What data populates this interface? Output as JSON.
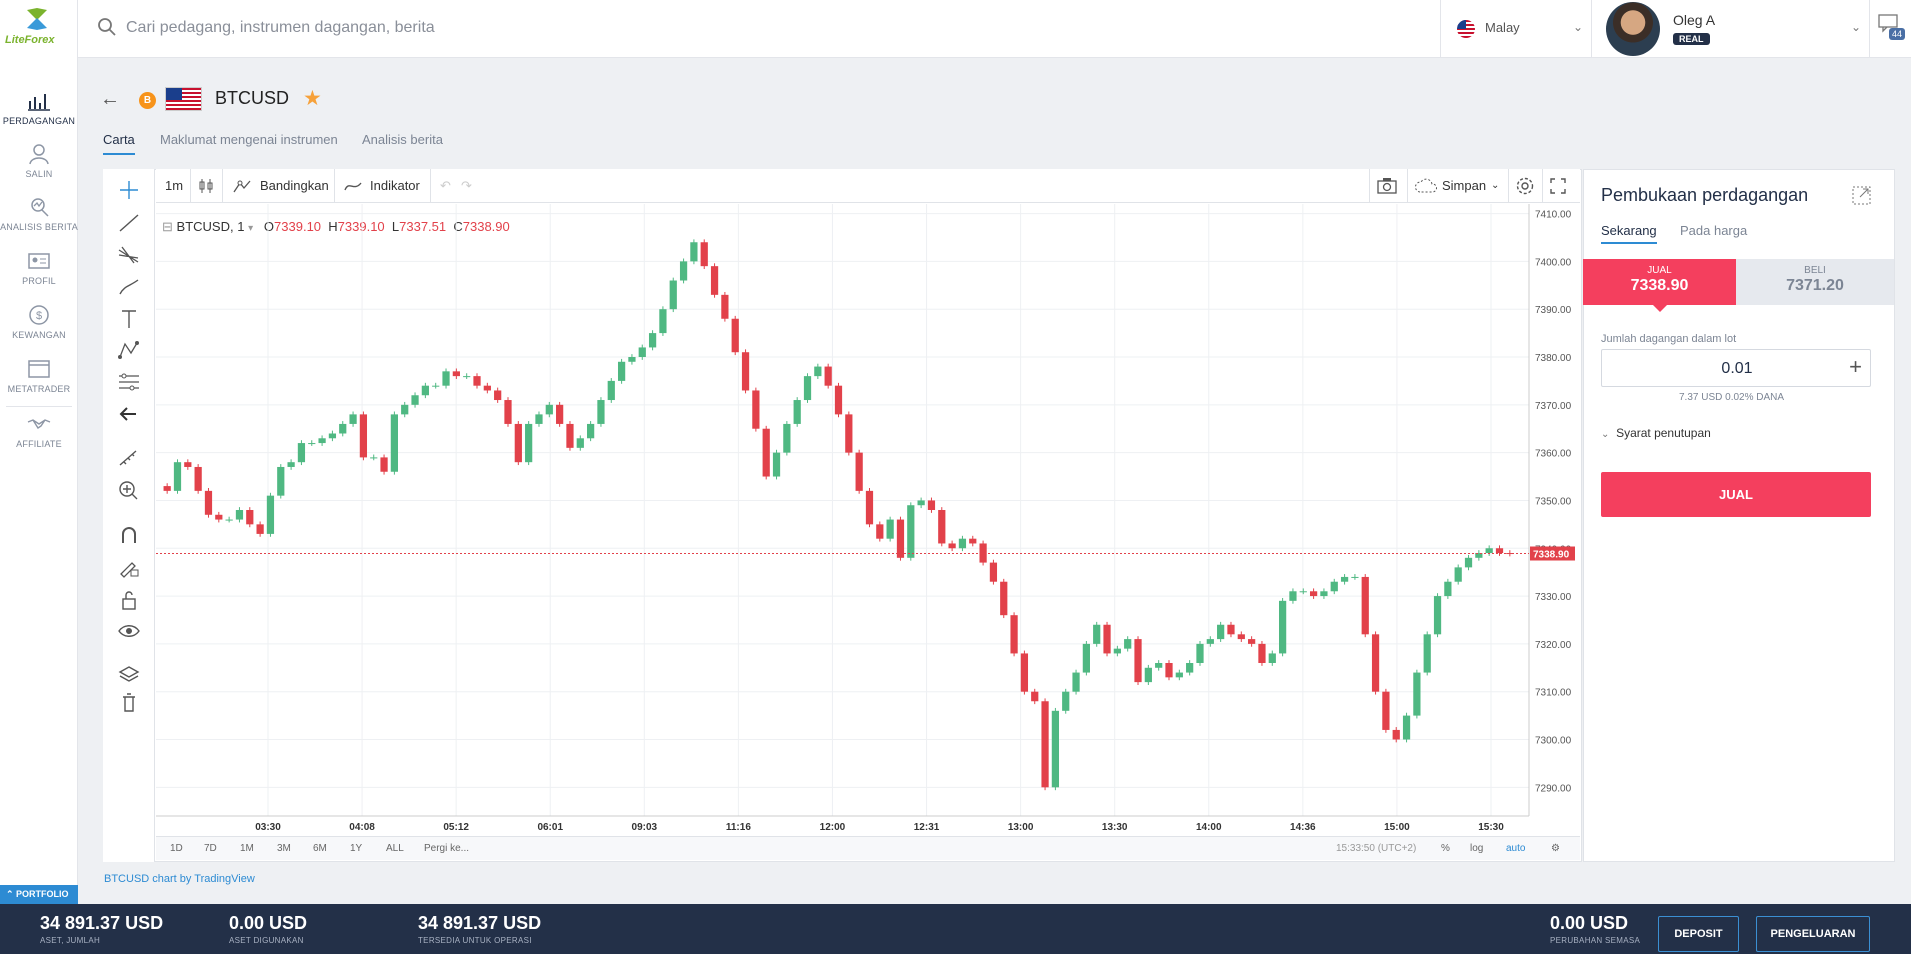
{
  "app": {
    "brand": "LiteForex"
  },
  "search": {
    "placeholder": "Cari pedagang, instrumen dagangan, berita"
  },
  "language": {
    "selected": "Malay"
  },
  "user": {
    "name": "Oleg A",
    "account_type": "REAL"
  },
  "chat": {
    "count": "44"
  },
  "sidebar": {
    "items": [
      {
        "label": "PERDAGANGAN",
        "icon": "chart-icon"
      },
      {
        "label": "SALIN",
        "icon": "copy-user-icon"
      },
      {
        "label": "ANALISIS BERITA",
        "icon": "analysis-icon"
      },
      {
        "label": "PROFIL",
        "icon": "profile-card-icon"
      },
      {
        "label": "KEWANGAN",
        "icon": "dollar-icon"
      },
      {
        "label": "METATRADER",
        "icon": "window-icon"
      },
      {
        "label": "AFFILIATE",
        "icon": "handshake-icon"
      }
    ],
    "portfolio": "PORTFOLIO"
  },
  "instrument": {
    "symbol": "BTCUSD"
  },
  "tabs": [
    {
      "label": "Carta"
    },
    {
      "label": "Maklumat mengenai instrumen"
    },
    {
      "label": "Analisis berita"
    }
  ],
  "toolbar": {
    "interval": "1m",
    "compare": "Bandingkan",
    "indicators": "Indikator",
    "save": "Simpan"
  },
  "legend": {
    "symbol": "BTCUSD, 1",
    "o": "7339.10",
    "h": "7339.10",
    "l": "7337.51",
    "c": "7338.90"
  },
  "ranges": [
    "1D",
    "7D",
    "1M",
    "3M",
    "6M",
    "1Y",
    "ALL",
    "Pergi ke..."
  ],
  "bottom_right": {
    "time": "15:33:50 (UTC+2)",
    "pct": "%",
    "log": "log",
    "auto": "auto"
  },
  "credit": "BTCUSD chart by TradingView",
  "chart_data": {
    "type": "candlestick",
    "y_ticks": [
      7290,
      7300,
      7310,
      7320,
      7330,
      7340,
      7350,
      7360,
      7370,
      7380,
      7390,
      7400,
      7410
    ],
    "ylim": [
      7284,
      7412
    ],
    "x_ticks": [
      "03:30",
      "04:08",
      "05:12",
      "06:01",
      "09:03",
      "11:16",
      "12:00",
      "12:31",
      "13:00",
      "13:30",
      "14:00",
      "14:36",
      "15:00",
      "15:30"
    ],
    "last_price": "7338.90",
    "close_series": [
      7352,
      7358,
      7357,
      7352,
      7347,
      7346,
      7346,
      7348,
      7345,
      7343,
      7351,
      7357,
      7358,
      7362,
      7362,
      7363,
      7364,
      7366,
      7368,
      7359,
      7359,
      7356,
      7368,
      7370,
      7372,
      7374,
      7374,
      7377,
      7376,
      7376,
      7374,
      7373,
      7371,
      7366,
      7358,
      7366,
      7368,
      7370,
      7366,
      7361,
      7363,
      7366,
      7371,
      7375,
      7379,
      7380,
      7382,
      7385,
      7390,
      7396,
      7400,
      7404,
      7399,
      7393,
      7388,
      7381,
      7373,
      7365,
      7355,
      7360,
      7366,
      7371,
      7376,
      7378,
      7374,
      7368,
      7360,
      7352,
      7345,
      7342,
      7346,
      7338,
      7349,
      7350,
      7348,
      7341,
      7340,
      7342,
      7341,
      7337,
      7333,
      7326,
      7318,
      7310,
      7308,
      7290,
      7306,
      7310,
      7314,
      7320,
      7324,
      7318,
      7319,
      7321,
      7312,
      7315,
      7316,
      7313,
      7314,
      7316,
      7320,
      7321,
      7324,
      7322,
      7321,
      7320,
      7316,
      7318,
      7329,
      7331,
      7331,
      7330,
      7331,
      7333,
      7334,
      7334,
      7322,
      7310,
      7302,
      7300,
      7305,
      7314,
      7322,
      7330,
      7333,
      7336,
      7338,
      7339,
      7340,
      7339,
      7338.9
    ]
  },
  "trade": {
    "title": "Pembukaan perdagangan",
    "tab_now": "Sekarang",
    "tab_price": "Pada harga",
    "sell_label": "JUAL",
    "sell_price": "7338.90",
    "buy_label": "BELI",
    "buy_price": "7371.20",
    "lot_label": "Jumlah dagangan dalam lot",
    "lot_value": "0.01",
    "lot_info": "7.37 USD  0.02% DANA",
    "close_conditions": "Syarat penutupan",
    "sell_button": "JUAL"
  },
  "footer": {
    "total_assets": {
      "value": "34 891.37 USD",
      "label": "ASET, JUMLAH"
    },
    "used_assets": {
      "value": "0.00 USD",
      "label": "ASET DIGUNAKAN"
    },
    "available": {
      "value": "34 891.37 USD",
      "label": "TERSEDIA UNTUK OPERASI"
    },
    "current_change": {
      "value": "0.00 USD",
      "label": "PERUBAHAN SEMASA"
    },
    "deposit": "DEPOSIT",
    "withdraw": "PENGELUARAN"
  },
  "colors": {
    "up": "#4fb882",
    "down": "#e2414a",
    "accent": "#2d8bd3",
    "sell": "#f43f5e",
    "footer": "#233048"
  }
}
